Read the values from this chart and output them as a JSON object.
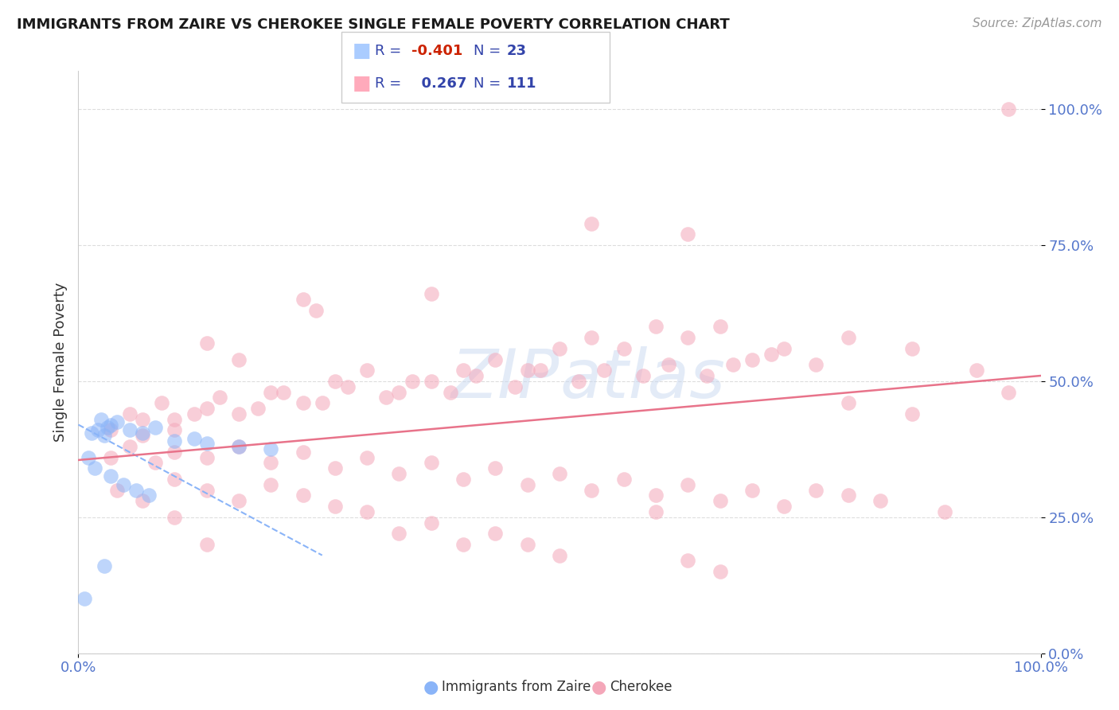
{
  "title": "IMMIGRANTS FROM ZAIRE VS CHEROKEE SINGLE FEMALE POVERTY CORRELATION CHART",
  "source": "Source: ZipAtlas.com",
  "ylabel": "Single Female Poverty",
  "legend_label_blue": "Immigrants from Zaire",
  "legend_label_pink": "Cherokee",
  "blue_color": "#8ab4f8",
  "pink_color": "#f4a7b9",
  "blue_line_color": "#8ab4f8",
  "pink_line_color": "#e8738a",
  "watermark_color": "#c8d8f0",
  "background_color": "#ffffff",
  "grid_color": "#dddddd",
  "tick_color": "#5577cc",
  "blue_points": [
    [
      0.4,
      40.0
    ],
    [
      0.5,
      42.0
    ],
    [
      0.3,
      41.0
    ],
    [
      0.35,
      43.0
    ],
    [
      0.45,
      41.5
    ],
    [
      0.2,
      40.5
    ],
    [
      0.6,
      42.5
    ],
    [
      0.8,
      41.0
    ],
    [
      1.0,
      40.5
    ],
    [
      1.2,
      41.5
    ],
    [
      1.5,
      39.0
    ],
    [
      1.8,
      39.5
    ],
    [
      2.0,
      38.5
    ],
    [
      2.5,
      38.0
    ],
    [
      3.0,
      37.5
    ],
    [
      0.15,
      36.0
    ],
    [
      0.25,
      34.0
    ],
    [
      0.5,
      32.5
    ],
    [
      0.7,
      31.0
    ],
    [
      0.9,
      30.0
    ],
    [
      1.1,
      29.0
    ],
    [
      0.4,
      16.0
    ],
    [
      0.1,
      10.0
    ]
  ],
  "pink_points": [
    [
      1.5,
      41.0
    ],
    [
      2.0,
      57.0
    ],
    [
      2.5,
      54.0
    ],
    [
      3.5,
      65.0
    ],
    [
      3.7,
      63.0
    ],
    [
      5.5,
      66.0
    ],
    [
      8.0,
      79.0
    ],
    [
      9.5,
      77.0
    ],
    [
      14.5,
      100.0
    ],
    [
      1.0,
      40.0
    ],
    [
      1.5,
      43.0
    ],
    [
      2.0,
      45.0
    ],
    [
      2.5,
      44.0
    ],
    [
      3.0,
      48.0
    ],
    [
      3.5,
      46.0
    ],
    [
      4.0,
      50.0
    ],
    [
      4.5,
      52.0
    ],
    [
      5.0,
      48.0
    ],
    [
      5.5,
      50.0
    ],
    [
      6.0,
      52.0
    ],
    [
      6.5,
      54.0
    ],
    [
      7.0,
      52.0
    ],
    [
      7.5,
      56.0
    ],
    [
      8.0,
      58.0
    ],
    [
      8.5,
      56.0
    ],
    [
      9.0,
      60.0
    ],
    [
      9.5,
      58.0
    ],
    [
      10.0,
      60.0
    ],
    [
      10.5,
      54.0
    ],
    [
      11.0,
      56.0
    ],
    [
      12.0,
      58.0
    ],
    [
      13.0,
      56.0
    ],
    [
      14.0,
      52.0
    ],
    [
      0.5,
      41.0
    ],
    [
      0.8,
      44.0
    ],
    [
      1.0,
      43.0
    ],
    [
      1.3,
      46.0
    ],
    [
      1.8,
      44.0
    ],
    [
      2.2,
      47.0
    ],
    [
      2.8,
      45.0
    ],
    [
      3.2,
      48.0
    ],
    [
      3.8,
      46.0
    ],
    [
      4.2,
      49.0
    ],
    [
      4.8,
      47.0
    ],
    [
      5.2,
      50.0
    ],
    [
      5.8,
      48.0
    ],
    [
      6.2,
      51.0
    ],
    [
      6.8,
      49.0
    ],
    [
      7.2,
      52.0
    ],
    [
      7.8,
      50.0
    ],
    [
      8.2,
      52.0
    ],
    [
      8.8,
      51.0
    ],
    [
      9.2,
      53.0
    ],
    [
      9.8,
      51.0
    ],
    [
      10.2,
      53.0
    ],
    [
      10.8,
      55.0
    ],
    [
      11.5,
      53.0
    ],
    [
      0.5,
      36.0
    ],
    [
      0.8,
      38.0
    ],
    [
      1.2,
      35.0
    ],
    [
      1.5,
      37.0
    ],
    [
      2.0,
      36.0
    ],
    [
      2.5,
      38.0
    ],
    [
      3.0,
      35.0
    ],
    [
      3.5,
      37.0
    ],
    [
      4.0,
      34.0
    ],
    [
      4.5,
      36.0
    ],
    [
      5.0,
      33.0
    ],
    [
      5.5,
      35.0
    ],
    [
      6.0,
      32.0
    ],
    [
      6.5,
      34.0
    ],
    [
      7.0,
      31.0
    ],
    [
      7.5,
      33.0
    ],
    [
      8.0,
      30.0
    ],
    [
      8.5,
      32.0
    ],
    [
      9.0,
      29.0
    ],
    [
      9.5,
      31.0
    ],
    [
      10.0,
      28.0
    ],
    [
      10.5,
      30.0
    ],
    [
      11.0,
      27.0
    ],
    [
      12.0,
      29.0
    ],
    [
      0.6,
      30.0
    ],
    [
      1.0,
      28.0
    ],
    [
      1.5,
      32.0
    ],
    [
      2.0,
      30.0
    ],
    [
      2.5,
      28.0
    ],
    [
      3.0,
      31.0
    ],
    [
      3.5,
      29.0
    ],
    [
      4.0,
      27.0
    ],
    [
      4.5,
      26.0
    ],
    [
      5.0,
      22.0
    ],
    [
      5.5,
      24.0
    ],
    [
      6.0,
      20.0
    ],
    [
      6.5,
      22.0
    ],
    [
      7.0,
      20.0
    ],
    [
      7.5,
      18.0
    ],
    [
      9.0,
      26.0
    ],
    [
      9.5,
      17.0
    ],
    [
      10.0,
      15.0
    ],
    [
      11.5,
      30.0
    ],
    [
      12.5,
      28.0
    ],
    [
      13.5,
      26.0
    ],
    [
      14.5,
      48.0
    ],
    [
      12.0,
      46.0
    ],
    [
      13.0,
      44.0
    ],
    [
      1.5,
      25.0
    ],
    [
      2.0,
      20.0
    ]
  ],
  "blue_line_x": [
    0.0,
    3.8
  ],
  "blue_line_y": [
    42.0,
    18.0
  ],
  "pink_line_x": [
    0.0,
    100.0
  ],
  "pink_line_y": [
    35.5,
    51.0
  ],
  "xlim": [
    0,
    100
  ],
  "ylim": [
    0,
    107
  ],
  "xscale": 6.667,
  "yticks": [
    0,
    25,
    50,
    75,
    100
  ]
}
